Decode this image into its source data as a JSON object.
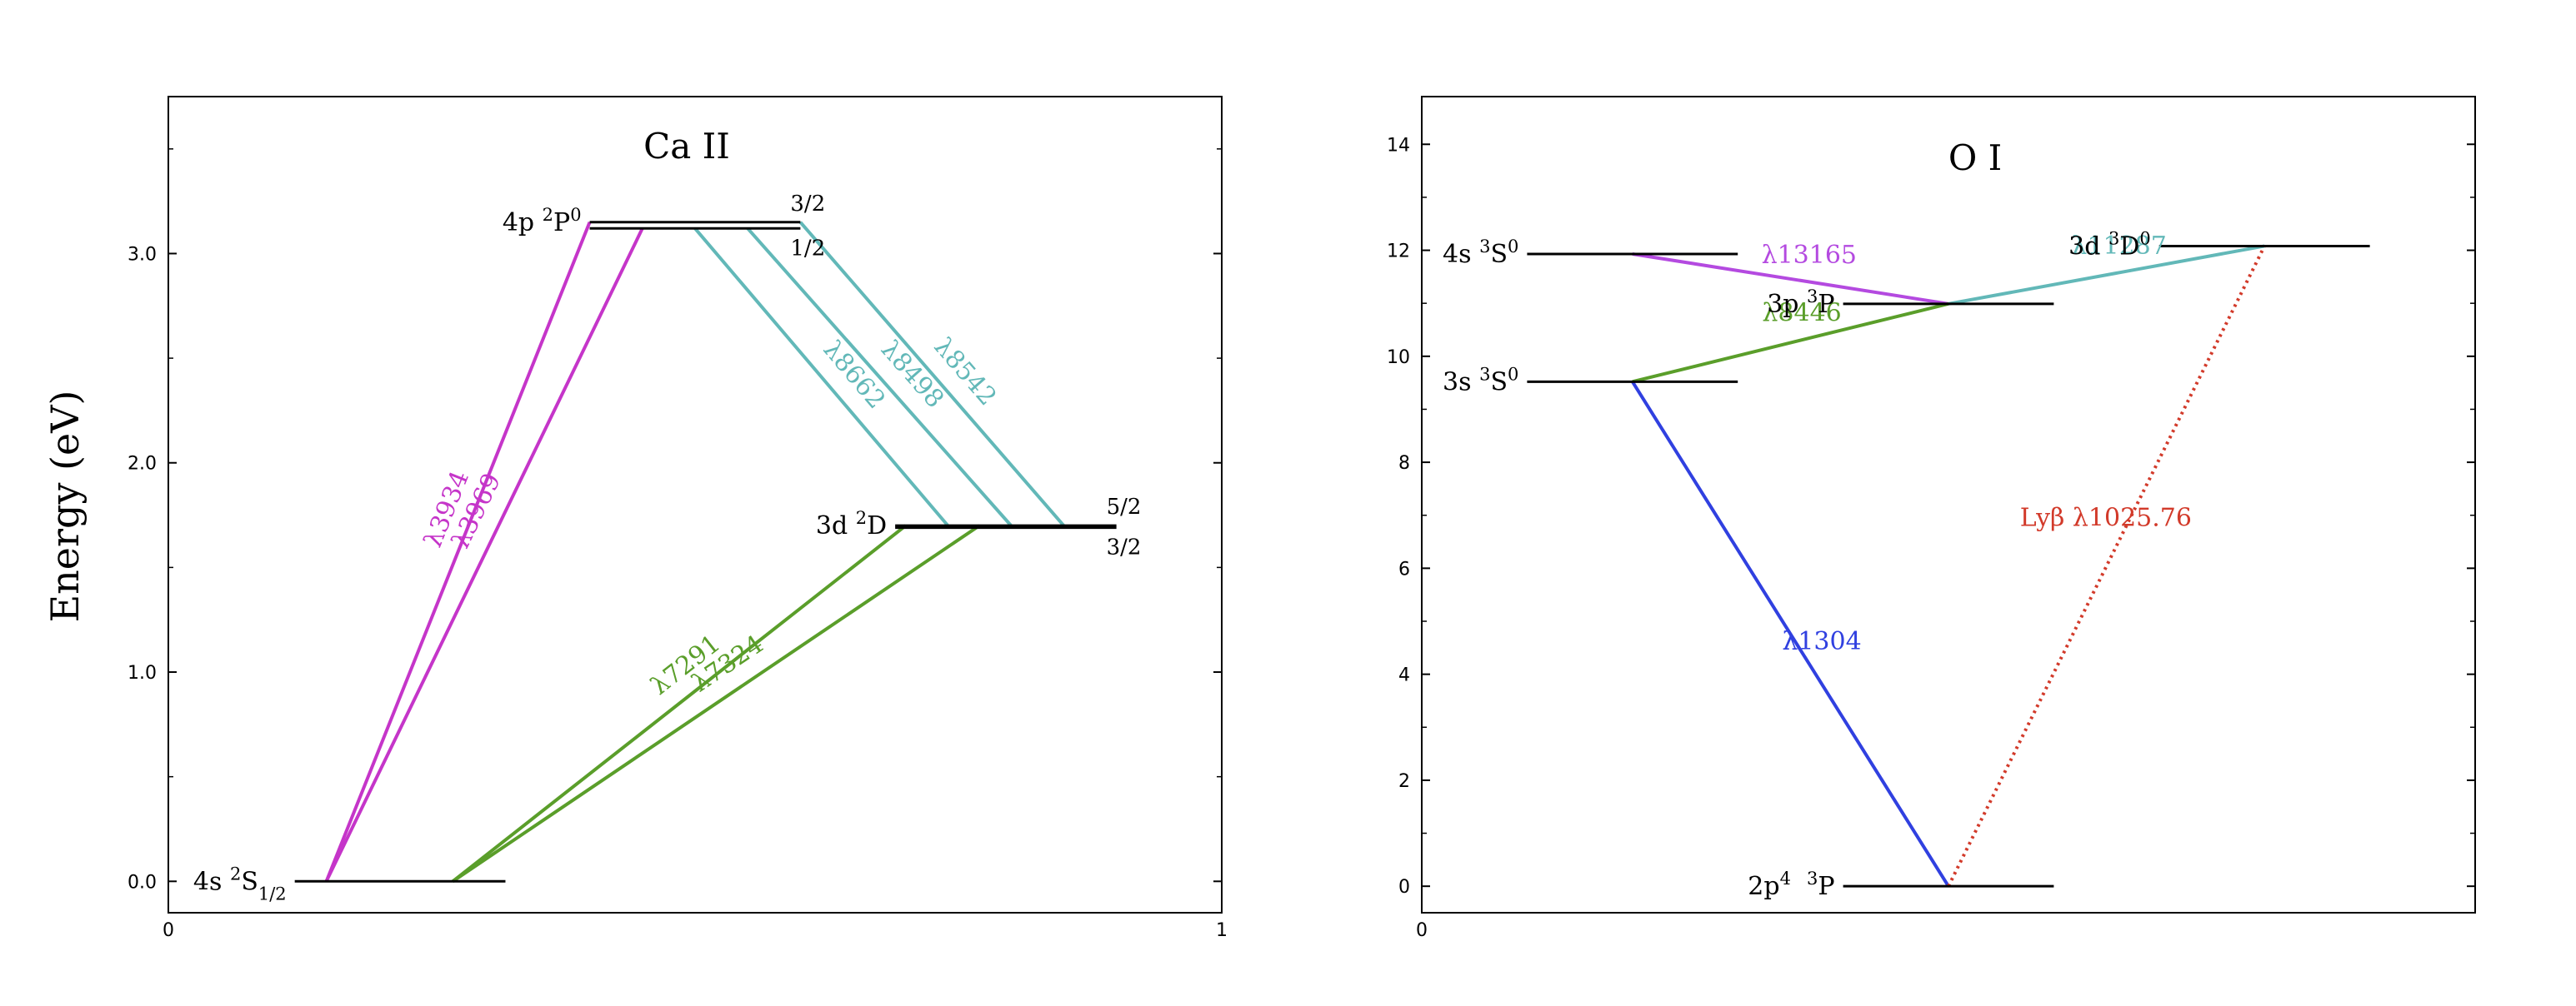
{
  "ylabel": "Energy (eV)",
  "colors": {
    "magenta": "#c535c9",
    "teal": "#62b8b8",
    "green": "#5a9e2a",
    "purple": "#b44ae0",
    "blue": "#3040e0",
    "red": "#d23a2a",
    "axis": "#000000"
  },
  "chart_data": [
    {
      "type": "diagram",
      "title": "Ca II",
      "xticks": [
        "0",
        "1"
      ],
      "yticks": [
        "0.0",
        "1.0",
        "2.0",
        "3.0"
      ],
      "ylim": [
        -0.15,
        3.75
      ],
      "xlim": [
        0,
        1
      ],
      "levels": [
        {
          "name": "4s-2s12",
          "prefix": "4s ",
          "sup": "2",
          "term": "S",
          "sub": "1/2",
          "energy": 0.0,
          "x0": 0.12,
          "x1": 0.32,
          "label_side": "left"
        },
        {
          "name": "4p-2p0-32",
          "prefix": "4p ",
          "sup": "2",
          "term": "P",
          "sup2": "0",
          "energy": 3.15,
          "x0": 0.4,
          "x1": 0.6,
          "label_side": "left",
          "j": "3/2"
        },
        {
          "name": "4p-2p0-12",
          "energy": 3.12,
          "x0": 0.4,
          "x1": 0.6,
          "j": "1/2"
        },
        {
          "name": "3d-2d-52",
          "prefix": "3d ",
          "sup": "2",
          "term": "D",
          "energy": 1.7,
          "x0": 0.69,
          "x1": 0.9,
          "label_side": "left",
          "j": "5/2"
        },
        {
          "name": "3d-2d-32",
          "energy": 1.69,
          "x0": 0.69,
          "x1": 0.9,
          "j": "3/2"
        }
      ],
      "transitions": [
        {
          "label": "λ3934",
          "x0": 0.15,
          "y0": 0.0,
          "x1": 0.4,
          "y1": 3.15,
          "color": "magenta"
        },
        {
          "label": "λ3969",
          "x0": 0.15,
          "y0": 0.0,
          "x1": 0.45,
          "y1": 3.12,
          "color": "magenta"
        },
        {
          "label": "λ8662",
          "x0": 0.5,
          "y0": 3.12,
          "x1": 0.74,
          "y1": 1.7,
          "color": "teal"
        },
        {
          "label": "λ8498",
          "x0": 0.55,
          "y0": 3.12,
          "x1": 0.8,
          "y1": 1.7,
          "color": "teal"
        },
        {
          "label": "λ8542",
          "x0": 0.6,
          "y0": 3.15,
          "x1": 0.85,
          "y1": 1.7,
          "color": "teal"
        },
        {
          "label": "λ7291",
          "x0": 0.27,
          "y0": 0.0,
          "x1": 0.7,
          "y1": 1.7,
          "color": "green"
        },
        {
          "label": "λ7324",
          "x0": 0.27,
          "y0": 0.0,
          "x1": 0.77,
          "y1": 1.7,
          "color": "green"
        }
      ]
    },
    {
      "type": "diagram",
      "title": "O I",
      "xticks": [
        "0"
      ],
      "yticks": [
        "0",
        "2",
        "4",
        "6",
        "8",
        "10",
        "12",
        "14"
      ],
      "ylim": [
        -0.5,
        14.9
      ],
      "xlim": [
        0,
        1
      ],
      "levels": [
        {
          "name": "4s-3s0",
          "prefix": "4s ",
          "sup": "3",
          "term": "S",
          "sup2": "0",
          "energy": 11.93,
          "x0": 0.1,
          "x1": 0.3,
          "label_side": "left"
        },
        {
          "name": "3s-3s0",
          "prefix": "3s ",
          "sup": "3",
          "term": "S",
          "sup2": "0",
          "energy": 9.52,
          "x0": 0.1,
          "x1": 0.3,
          "label_side": "left"
        },
        {
          "name": "3p-3p",
          "prefix": "3p ",
          "sup": "3",
          "term": "P",
          "energy": 10.99,
          "x0": 0.4,
          "x1": 0.6,
          "label_side": "left"
        },
        {
          "name": "3d-3d0",
          "prefix": "3d ",
          "sup": "3",
          "term": "D",
          "sup2": "0",
          "energy": 12.08,
          "x0": 0.7,
          "x1": 0.9,
          "label_side": "left"
        },
        {
          "name": "2p4-3p",
          "prefix": "2p",
          "prefix_sup": "4",
          "sup": "3",
          "term": "P",
          "energy": 0.0,
          "x0": 0.4,
          "x1": 0.6,
          "label_side": "left"
        }
      ],
      "transitions": [
        {
          "label": "λ13165",
          "x0": 0.2,
          "y0": 11.93,
          "x1": 0.5,
          "y1": 10.99,
          "color": "purple"
        },
        {
          "label": "λ8446",
          "x0": 0.2,
          "y0": 9.52,
          "x1": 0.5,
          "y1": 10.99,
          "color": "green"
        },
        {
          "label": "λ11287",
          "x0": 0.5,
          "y0": 10.99,
          "x1": 0.8,
          "y1": 12.08,
          "color": "teal"
        },
        {
          "label": "λ1304",
          "x0": 0.2,
          "y0": 9.52,
          "x1": 0.5,
          "y1": 0.0,
          "color": "blue"
        },
        {
          "label": "Lyβ λ1025.76",
          "x0": 0.5,
          "y0": 0.0,
          "x1": 0.8,
          "y1": 12.08,
          "color": "red",
          "dotted": true
        }
      ]
    }
  ]
}
